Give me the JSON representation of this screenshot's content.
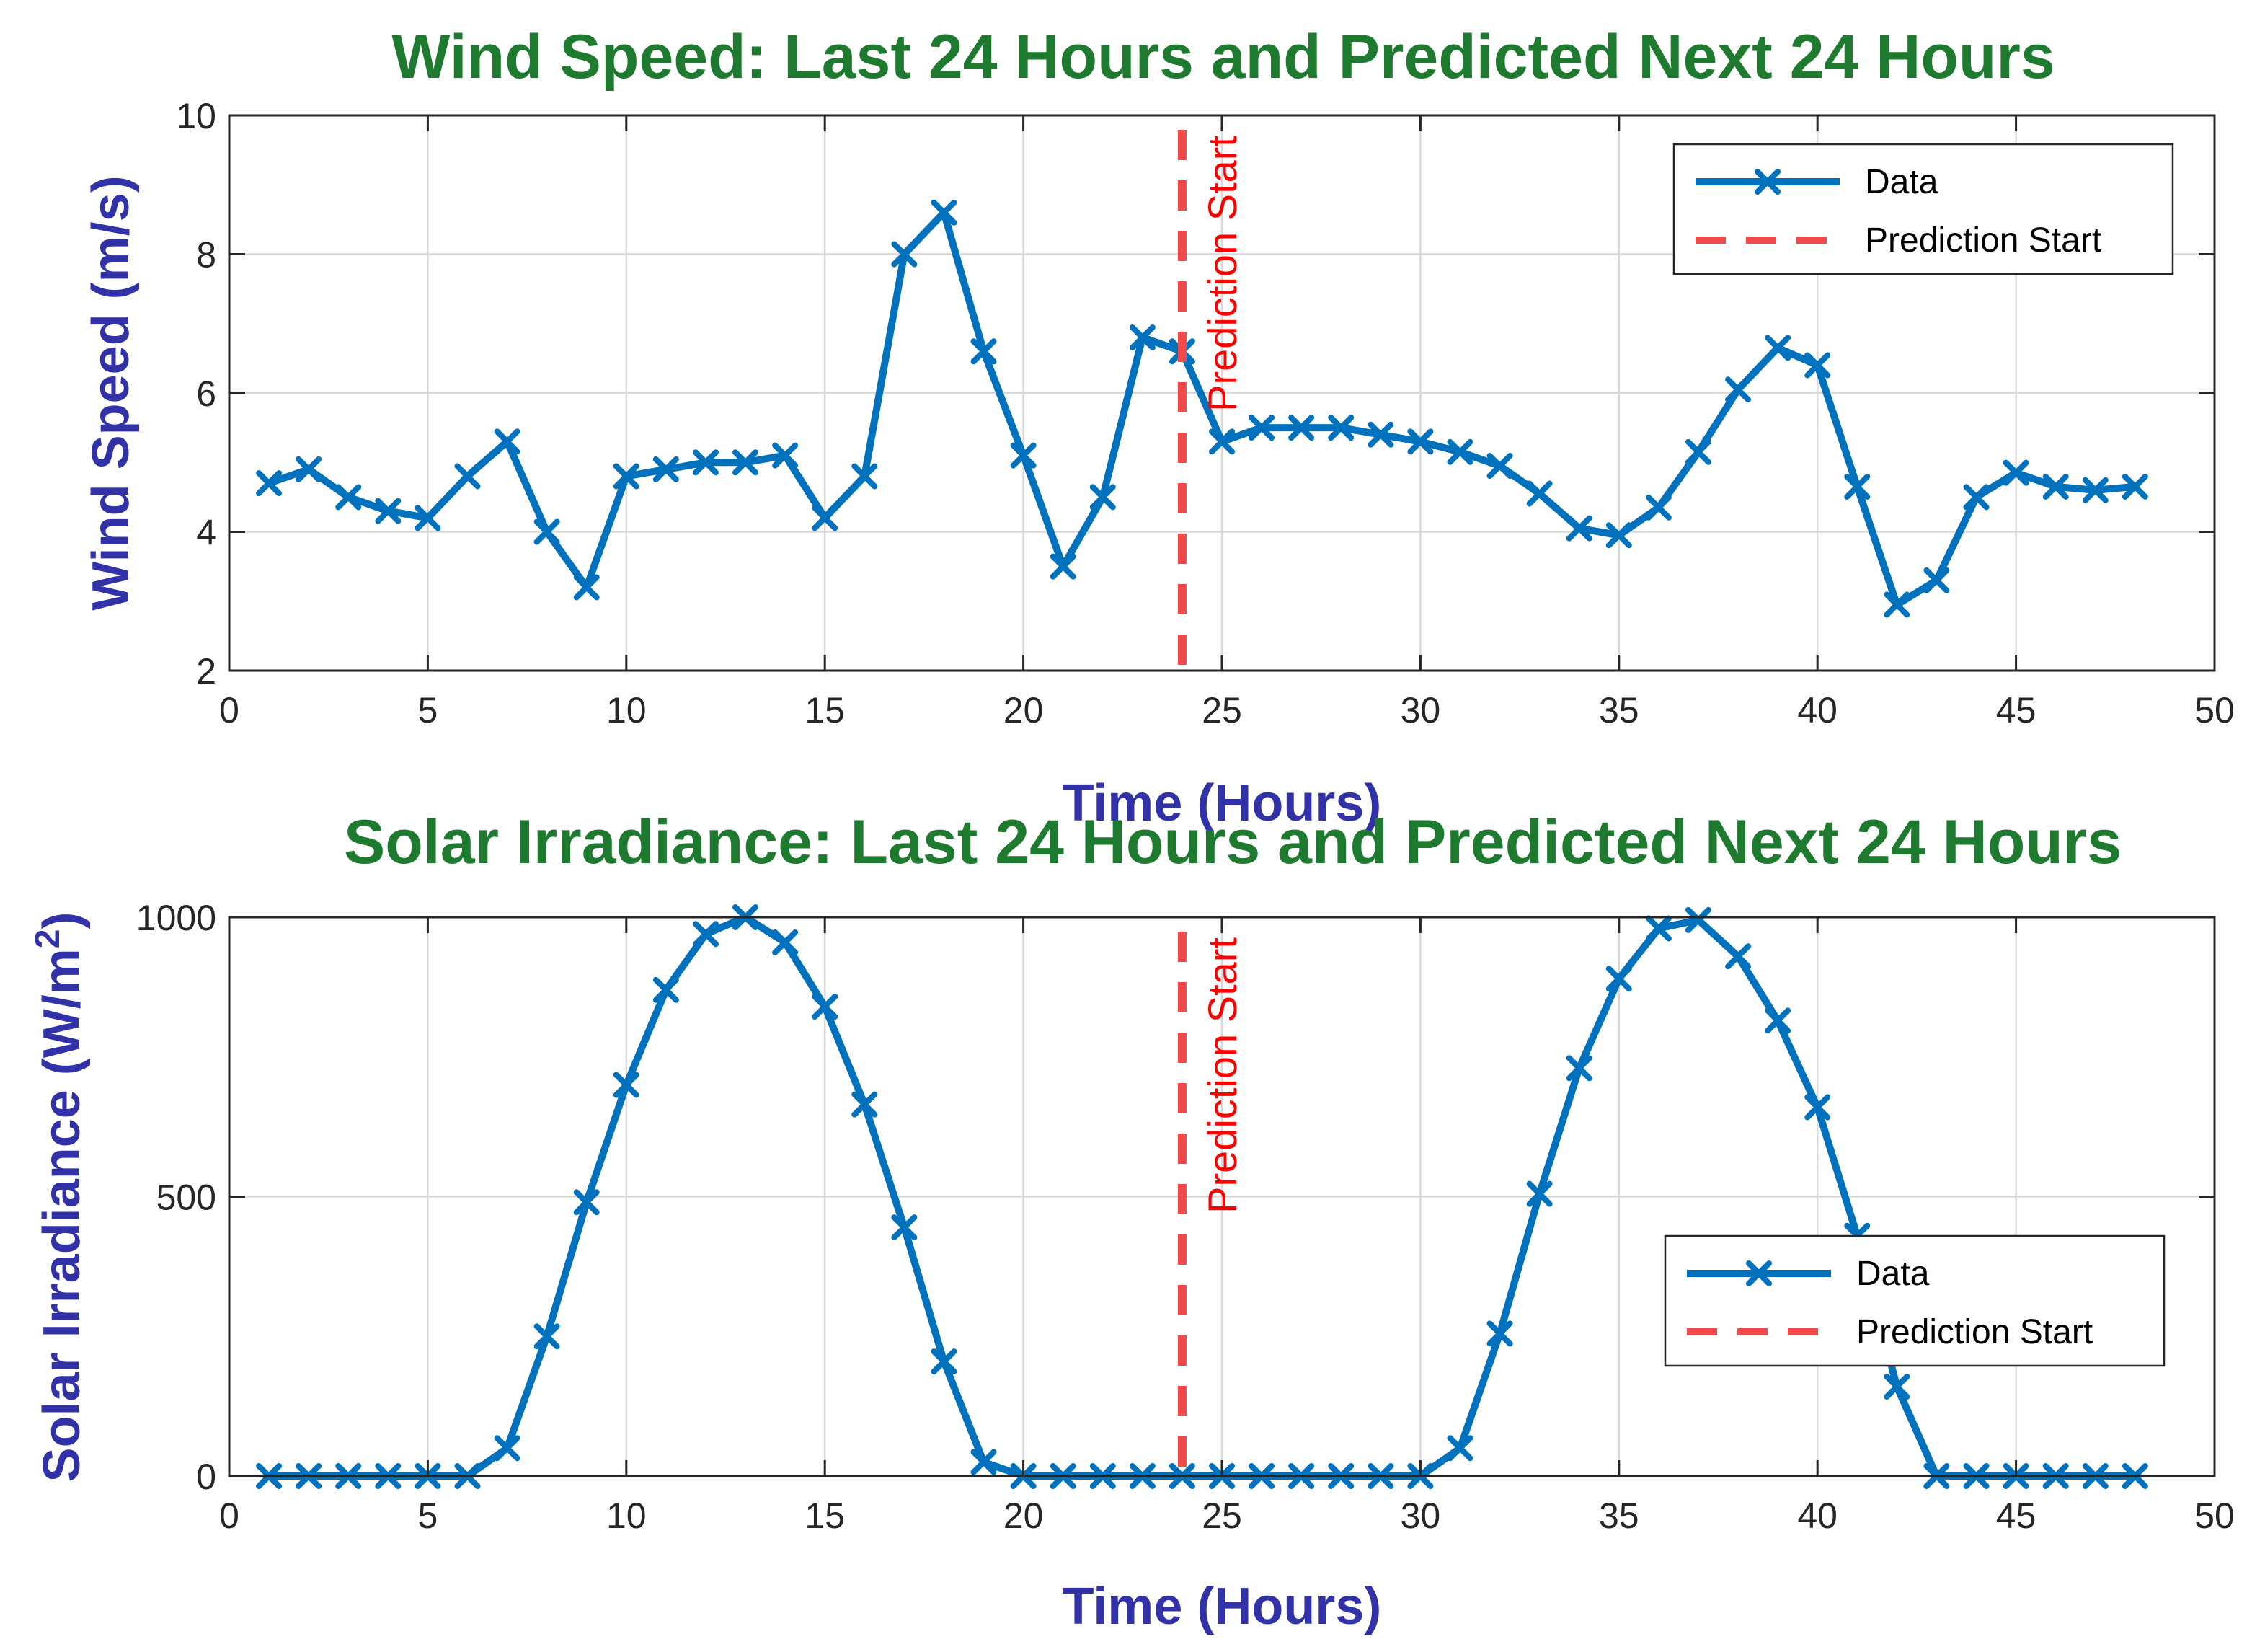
{
  "colors": {
    "title": "#1e7a2e",
    "axis_label": "#3232a8",
    "series": "#0072BD",
    "prediction_line": "#f04a4a",
    "annotation": "#ff0000",
    "grid": "#d9d9d9",
    "axis": "#262626"
  },
  "chart_data": [
    {
      "type": "line",
      "title": "Wind Speed: Last 24 Hours and Predicted Next 24 Hours",
      "xlabel": "Time (Hours)",
      "ylabel": "Wind Speed (m/s)",
      "xlim": [
        0,
        50
      ],
      "ylim": [
        2,
        10
      ],
      "xticks": [
        0,
        5,
        10,
        15,
        20,
        25,
        30,
        35,
        40,
        45,
        50
      ],
      "yticks": [
        2,
        4,
        6,
        8,
        10
      ],
      "grid": true,
      "legend_position": "top-right",
      "legend": [
        "Data",
        "Prediction Start"
      ],
      "marker": "x",
      "prediction_start_x": 24,
      "annotation": "Prediction Start",
      "x": [
        1,
        2,
        3,
        4,
        5,
        6,
        7,
        8,
        9,
        10,
        11,
        12,
        13,
        14,
        15,
        16,
        17,
        18,
        19,
        20,
        21,
        22,
        23,
        24,
        25,
        26,
        27,
        28,
        29,
        30,
        31,
        32,
        33,
        34,
        35,
        36,
        37,
        38,
        39,
        40,
        41,
        42,
        43,
        44,
        45,
        46,
        47,
        48
      ],
      "series": [
        {
          "name": "Data",
          "values": [
            4.7,
            4.9,
            4.5,
            4.3,
            4.2,
            4.8,
            5.3,
            4.0,
            3.2,
            4.8,
            4.9,
            5.0,
            5.0,
            5.1,
            4.2,
            4.8,
            8.0,
            8.6,
            6.6,
            5.1,
            3.5,
            4.5,
            6.8,
            6.6,
            5.3,
            5.5,
            5.5,
            5.5,
            5.4,
            5.3,
            5.15,
            4.95,
            4.55,
            4.05,
            3.95,
            4.35,
            5.15,
            6.05,
            6.65,
            6.4,
            4.65,
            2.95,
            3.3,
            4.5,
            4.85,
            4.65,
            4.6,
            4.65
          ]
        }
      ]
    },
    {
      "type": "line",
      "title": "Solar Irradiance: Last 24 Hours and Predicted Next 24 Hours",
      "xlabel": "Time (Hours)",
      "ylabel": "Solar Irradiance (W/m",
      "ylabel_superscript": "2",
      "ylabel_suffix": ")",
      "xlim": [
        0,
        50
      ],
      "ylim": [
        0,
        1000
      ],
      "xticks": [
        0,
        5,
        10,
        15,
        20,
        25,
        30,
        35,
        40,
        45,
        50
      ],
      "yticks": [
        0,
        500,
        1000
      ],
      "grid": true,
      "legend_position": "right",
      "legend": [
        "Data",
        "Prediction Start"
      ],
      "marker": "x",
      "prediction_start_x": 24,
      "annotation": "Prediction Start",
      "x": [
        1,
        2,
        3,
        4,
        5,
        6,
        7,
        8,
        9,
        10,
        11,
        12,
        13,
        14,
        15,
        16,
        17,
        18,
        19,
        20,
        21,
        22,
        23,
        24,
        25,
        26,
        27,
        28,
        29,
        30,
        31,
        32,
        33,
        34,
        35,
        36,
        37,
        38,
        39,
        40,
        41,
        42,
        43,
        44,
        45,
        46,
        47,
        48
      ],
      "series": [
        {
          "name": "Data",
          "values": [
            0,
            0,
            0,
            0,
            0,
            0,
            50,
            250,
            490,
            700,
            870,
            970,
            1000,
            955,
            840,
            665,
            445,
            205,
            25,
            0,
            0,
            0,
            0,
            0,
            0,
            0,
            0,
            0,
            0,
            0,
            50,
            255,
            505,
            730,
            890,
            980,
            995,
            930,
            815,
            660,
            430,
            160,
            0,
            0,
            0,
            0,
            0,
            0
          ]
        }
      ]
    }
  ]
}
